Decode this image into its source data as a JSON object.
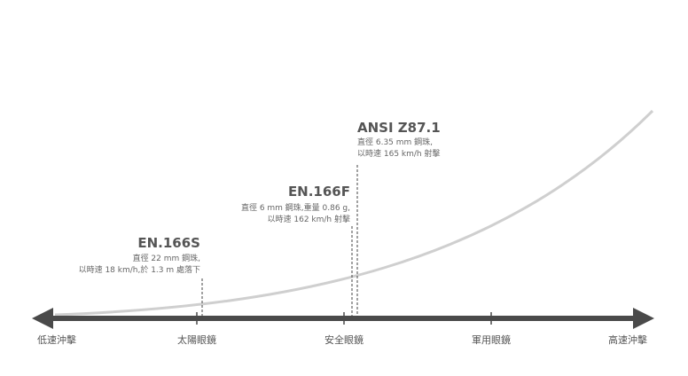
{
  "axis": {
    "left_label": "低速沖擊",
    "right_label": "高速沖擊",
    "categories": [
      {
        "key": "sunglasses",
        "label": "太陽眼鏡"
      },
      {
        "key": "safety",
        "label": "安全眼鏡"
      },
      {
        "key": "military",
        "label": "軍用眼鏡"
      }
    ]
  },
  "colors": {
    "axis": "#4a4a4a",
    "curve": "#cfcfcf",
    "marker": "#444444",
    "title": "#555555",
    "text": "#666666"
  },
  "standards": [
    {
      "key": "en166s",
      "title": "EN.166S",
      "lines": [
        "直徑 22 mm 鋼珠,",
        "以時速 18 km/h,於 1.3 m 處落下"
      ]
    },
    {
      "key": "en166f",
      "title": "EN.166F",
      "lines": [
        "直徑 6 mm 鋼珠,重量 0.86 g,",
        "以時速 162 km/h 射擊"
      ]
    },
    {
      "key": "ansiz87",
      "title": "ANSI Z87.1",
      "lines": [
        "直徑 6.35 mm 鋼珠,",
        "以時速 165 km/h 射擊"
      ]
    }
  ]
}
